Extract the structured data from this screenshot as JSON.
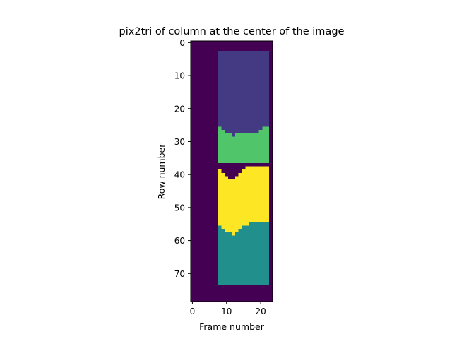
{
  "chart_data": {
    "type": "heatmap",
    "title": "pix2tri of column at the center of the image",
    "xlabel": "Frame number",
    "ylabel": "Row number",
    "xlim": [
      -0.5,
      23.5
    ],
    "ylim": [
      78.5,
      -0.5
    ],
    "xticks": [
      0,
      10,
      20
    ],
    "yticks": [
      0,
      10,
      20,
      30,
      40,
      50,
      60,
      70
    ],
    "grid": false,
    "colormap": "viridis",
    "background_color": "#440154",
    "regions": [
      {
        "name": "",
        "color": "#443a83",
        "x_range": [
          7.5,
          22.5
        ],
        "top_edge": [
          3,
          3,
          3,
          3,
          3,
          3,
          3,
          3,
          3,
          3,
          3,
          3,
          3,
          3,
          3
        ],
        "bottom_edge": [
          26,
          27,
          28,
          28,
          29,
          28,
          28,
          28,
          28,
          28,
          28,
          28,
          27,
          26,
          26
        ]
      },
      {
        "name": "",
        "color": "#51c56a",
        "x_range": [
          7.5,
          22.5
        ],
        "top_edge": [
          26,
          27,
          28,
          28,
          29,
          28,
          28,
          28,
          28,
          28,
          28,
          28,
          27,
          26,
          26
        ],
        "bottom_edge": [
          37,
          37,
          37,
          37,
          37,
          37,
          37,
          37,
          37,
          37,
          37,
          37,
          37,
          37,
          37
        ]
      },
      {
        "name": "",
        "color": "#fde725",
        "x_range": [
          7.5,
          22.5
        ],
        "top_edge": [
          39,
          40,
          41,
          42,
          42,
          41,
          40,
          39,
          38,
          38,
          38,
          38,
          38,
          38,
          38
        ],
        "bottom_edge": [
          56,
          57,
          58,
          58,
          59,
          58,
          57,
          56,
          56,
          55,
          55,
          55,
          55,
          55,
          55
        ]
      },
      {
        "name": "",
        "color": "#21908d",
        "x_range": [
          7.5,
          22.5
        ],
        "top_edge": [
          56,
          57,
          58,
          58,
          59,
          58,
          57,
          56,
          56,
          55,
          55,
          55,
          55,
          55,
          55
        ],
        "bottom_edge": [
          74,
          74,
          74,
          74,
          74,
          74,
          74,
          74,
          74,
          74,
          74,
          74,
          74,
          74,
          74
        ]
      }
    ]
  }
}
